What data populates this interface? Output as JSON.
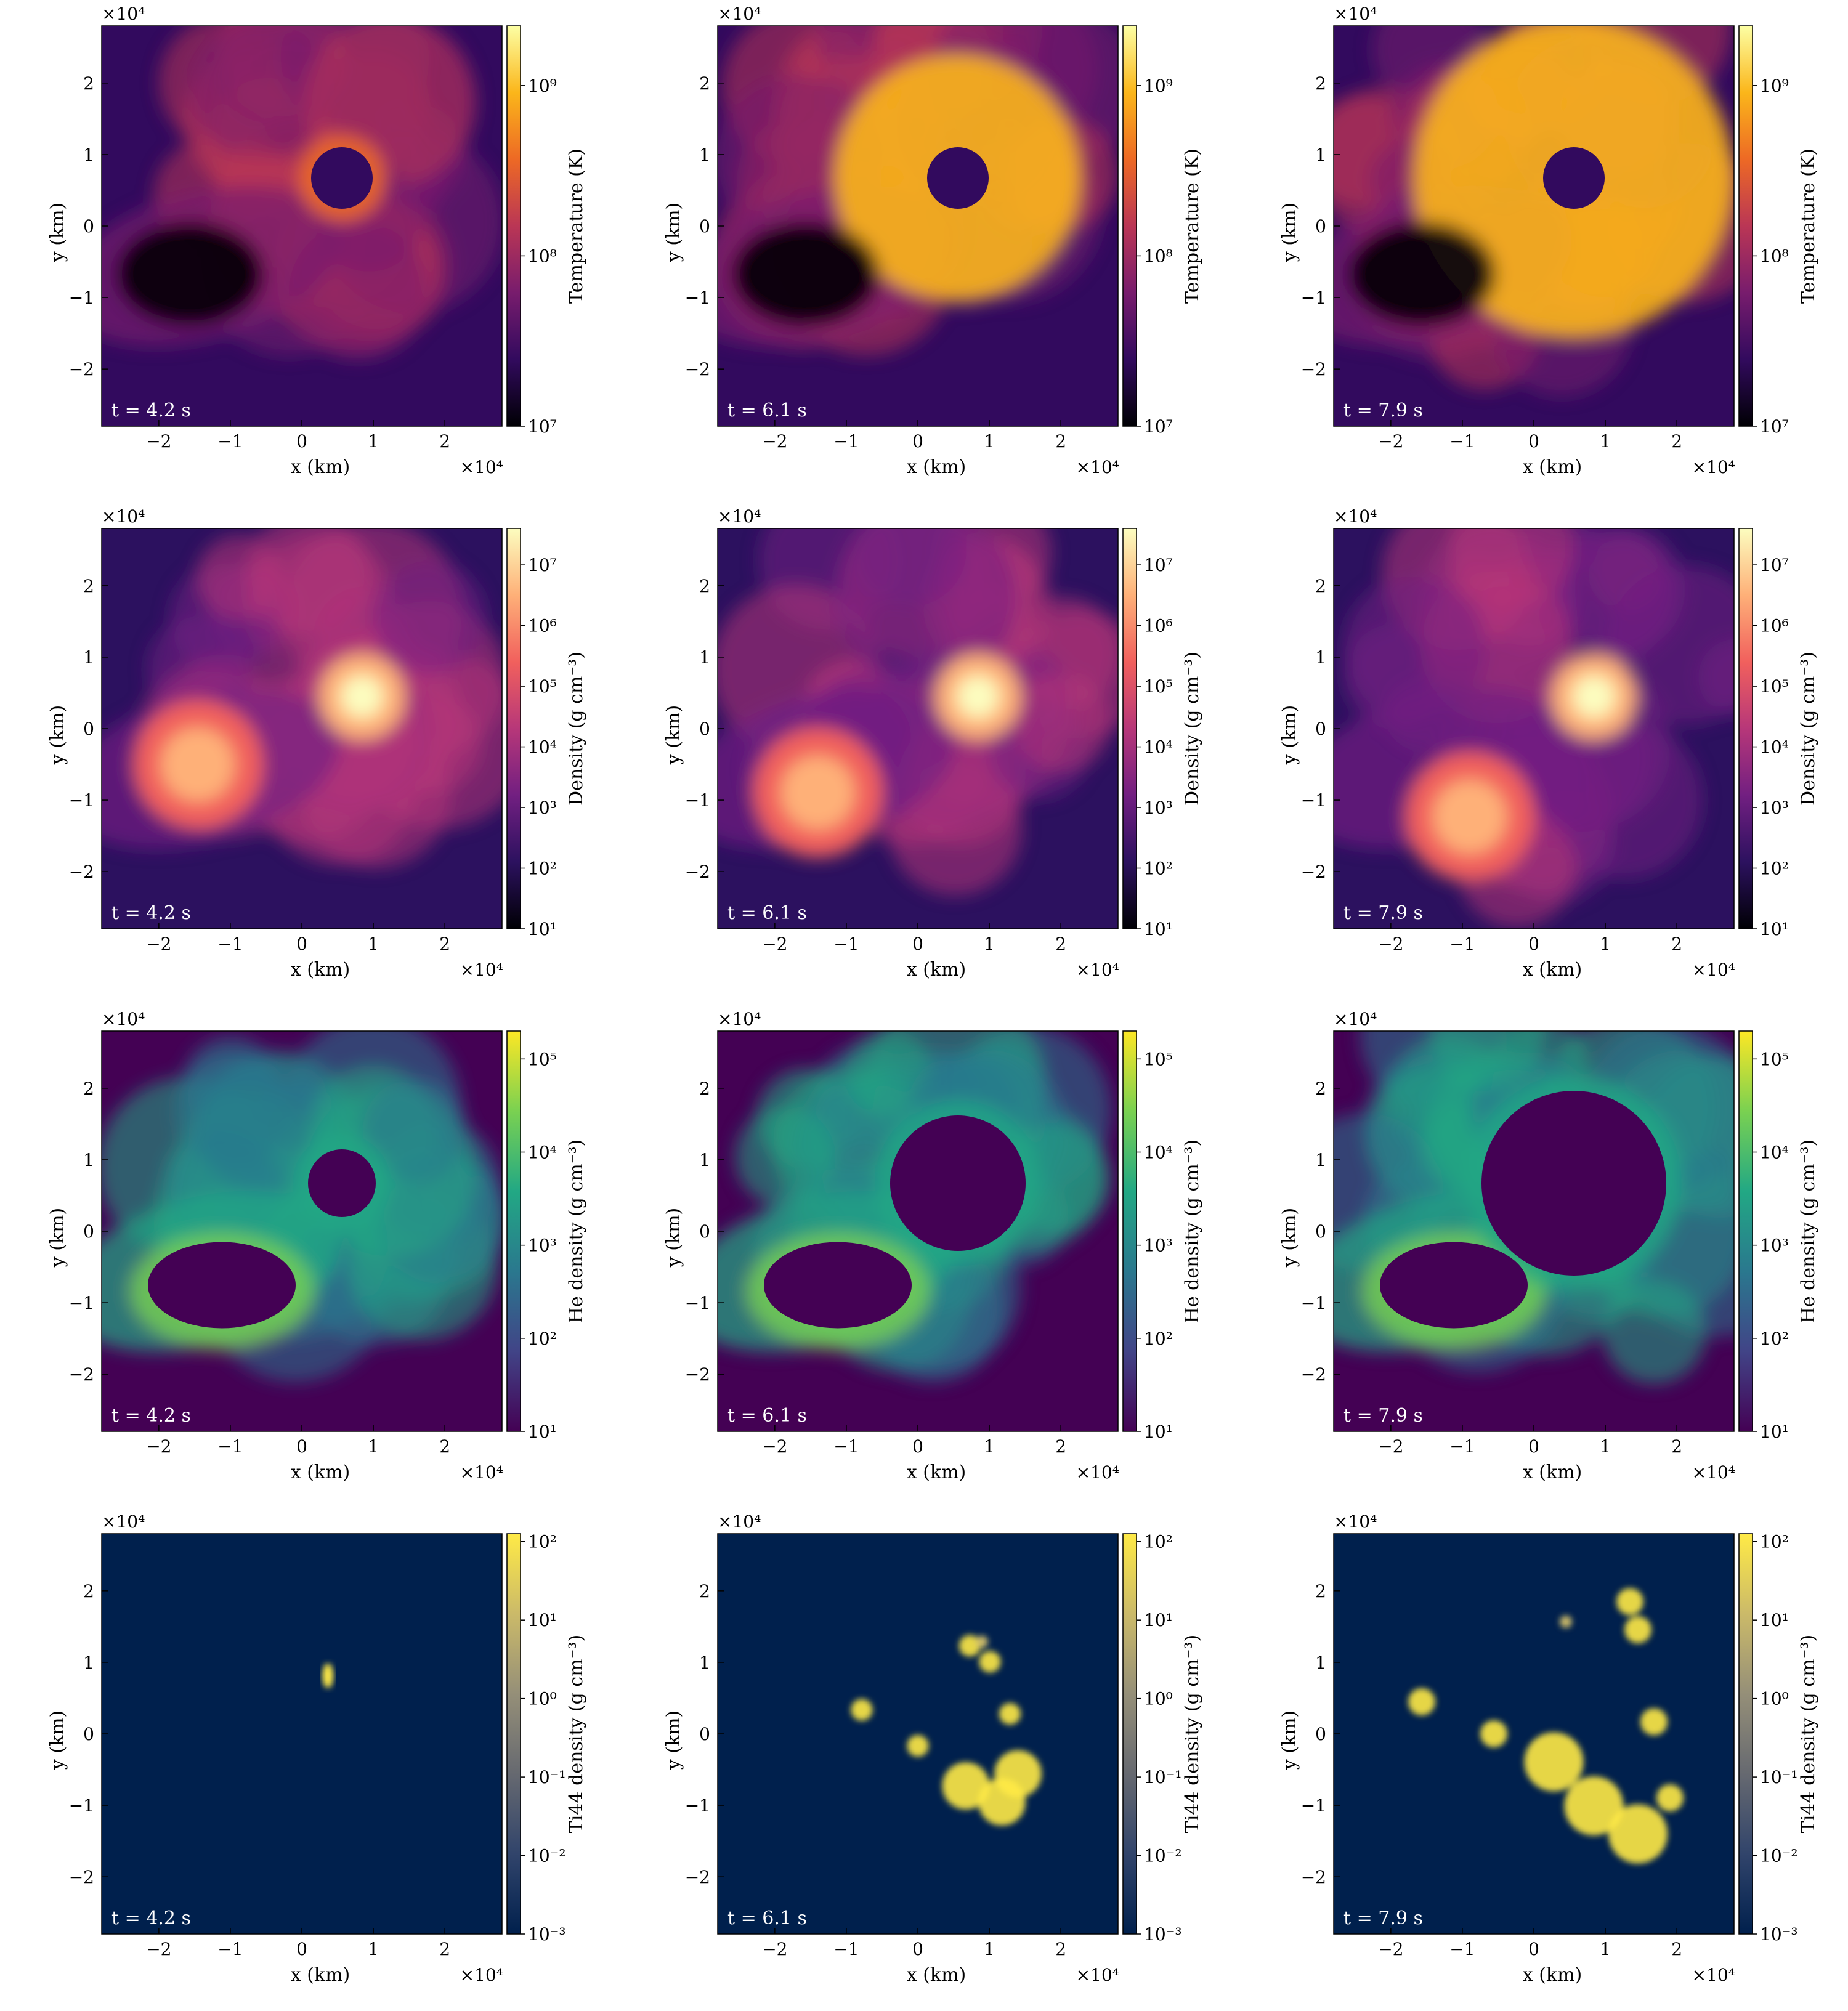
{
  "chart_data": {
    "type": "heatmap",
    "layout": {
      "rows": 4,
      "cols": 3
    },
    "times": [
      "t = 4.2 s",
      "t = 6.1 s",
      "t = 7.9 s"
    ],
    "x_axis": {
      "label": "x  (km)",
      "ticks": [
        -2,
        -1,
        0,
        1,
        2
      ],
      "multiplier": "×10⁴",
      "range": [
        -2.8,
        2.8
      ]
    },
    "y_axis": {
      "label": "y  (km)",
      "ticks": [
        2,
        1,
        0,
        -1,
        -2
      ],
      "multiplier": "×10⁴",
      "range": [
        -2.8,
        2.8
      ]
    },
    "panels": [
      {
        "quantity": "Temperature (K)",
        "cbar_ticks": [
          "10⁹",
          "10⁸",
          "10⁷"
        ],
        "cbar_exponents": [
          9,
          8,
          7
        ],
        "cbar_range_log": [
          7,
          9.35
        ],
        "colormap": "inferno-like",
        "cbar_stops": [
          "#000004",
          "#320a5e",
          "#781c6d",
          "#ba3655",
          "#ed6925",
          "#fbb61a",
          "#fcffa4"
        ]
      },
      {
        "quantity": "Density (g cm⁻³)",
        "cbar_ticks": [
          "10⁷",
          "10⁶",
          "10⁵",
          "10⁴",
          "10³",
          "10²",
          "10¹"
        ],
        "cbar_exponents": [
          7,
          6,
          5,
          4,
          3,
          2,
          1
        ],
        "cbar_range_log": [
          1,
          7.6
        ],
        "colormap": "magma-like",
        "cbar_stops": [
          "#000004",
          "#2c115f",
          "#721f81",
          "#b73779",
          "#f1605d",
          "#feb078",
          "#fcfdbf"
        ]
      },
      {
        "quantity": "He density (g cm⁻³)",
        "cbar_ticks": [
          "10⁵",
          "10⁴",
          "10³",
          "10²",
          "10¹"
        ],
        "cbar_exponents": [
          5,
          4,
          3,
          2,
          1
        ],
        "cbar_range_log": [
          1,
          5.3
        ],
        "colormap": "viridis-like",
        "cbar_stops": [
          "#440154",
          "#414487",
          "#2a788e",
          "#22a884",
          "#7ad151",
          "#fde725"
        ]
      },
      {
        "quantity": "Ti44 density (g cm⁻³)",
        "cbar_ticks": [
          "10²",
          "10¹",
          "10⁰",
          "10⁻¹",
          "10⁻²",
          "10⁻³"
        ],
        "cbar_exponents": [
          2,
          1,
          0,
          -1,
          -2,
          -3
        ],
        "cbar_range_log": [
          -3,
          2.1
        ],
        "colormap": "cividis-like",
        "cbar_stops": [
          "#00204d",
          "#31446b",
          "#666970",
          "#958f78",
          "#cbba69",
          "#ffea46"
        ]
      }
    ]
  }
}
